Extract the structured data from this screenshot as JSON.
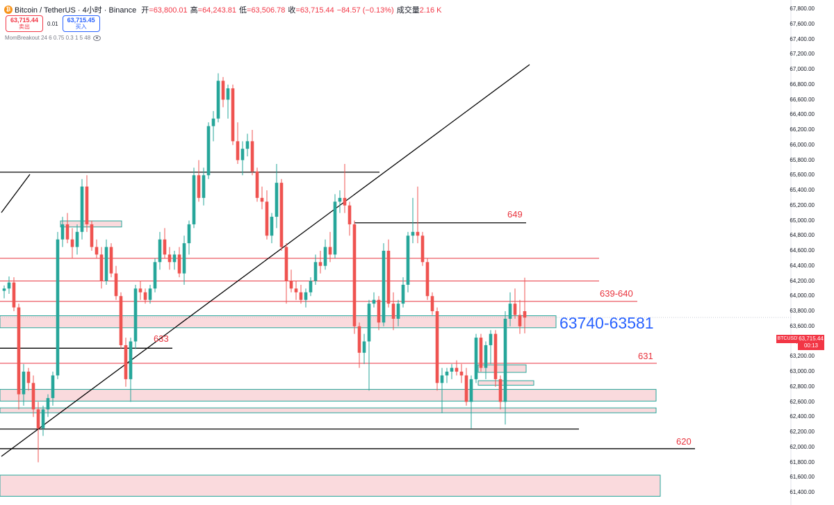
{
  "header": {
    "title": "Bitcoin / TetherUS · 4小时 · Binance",
    "coin_glyph": "₿",
    "ohlc": [
      {
        "k": "开",
        "v": "=63,800.01"
      },
      {
        "k": "高",
        "v": "=64,243.81"
      },
      {
        "k": "低",
        "v": "=63,506.78"
      },
      {
        "k": "收",
        "v": "=63,715.44"
      },
      {
        "k": "",
        "v": "−84.57 (−0.13%)"
      },
      {
        "k": "成交量",
        "v": "2.16 K"
      }
    ]
  },
  "trade": {
    "sell_price": "63,715.44",
    "sell_label": "卖出",
    "spread": "0.01",
    "buy_price": "63,715.45",
    "buy_label": "买入"
  },
  "indicator": {
    "label": "MomBreakout 24 6 0.75 0.3 1 5 48"
  },
  "price_axis": {
    "symbol": "BTCUSDT",
    "last_price": "63,715.44",
    "countdown": "00:13"
  },
  "annotations": {
    "a649": "649",
    "a639": "639-640",
    "a63740": "63740-63581",
    "a633": "633",
    "a631": "631",
    "a620": "620"
  },
  "colors": {
    "up": "#26a69a",
    "down": "#ef5350",
    "zone_fill": "#fadadd",
    "zone_border": "#26a69a",
    "red_line": "#e8323c",
    "black_line": "#000000",
    "blue_text": "#2962ff"
  },
  "chart_data": {
    "type": "candlestick",
    "title": "Bitcoin / TetherUS · 4小时 · Binance",
    "ylim": [
      61400,
      67800
    ],
    "y_ticks": [
      61400,
      61600,
      61800,
      62000,
      62200,
      62400,
      62600,
      62800,
      63000,
      63200,
      63400,
      63600,
      63800,
      64000,
      64200,
      64400,
      64600,
      64800,
      65000,
      65200,
      65400,
      65600,
      65800,
      66000,
      66200,
      66400,
      66600,
      66800,
      67000,
      67200,
      67400,
      67600,
      67800
    ],
    "candles": [
      [
        64070,
        64140,
        63970,
        64100
      ],
      [
        64100,
        64260,
        64030,
        64180
      ],
      [
        64180,
        64250,
        63800,
        63850
      ],
      [
        63850,
        63900,
        62500,
        62700
      ],
      [
        62700,
        63100,
        62550,
        63000
      ],
      [
        63000,
        63050,
        62750,
        62850
      ],
      [
        62850,
        62950,
        62400,
        62500
      ],
      [
        62500,
        62600,
        61800,
        62250
      ],
      [
        62250,
        62550,
        62150,
        62500
      ],
      [
        62500,
        62700,
        62400,
        62650
      ],
      [
        62650,
        63000,
        62550,
        62950
      ],
      [
        62950,
        64850,
        62900,
        64750
      ],
      [
        64750,
        65050,
        64650,
        64950
      ],
      [
        64950,
        65100,
        64700,
        64750
      ],
      [
        64750,
        64900,
        64500,
        64650
      ],
      [
        64650,
        64950,
        64550,
        64850
      ],
      [
        64850,
        65550,
        64750,
        65450
      ],
      [
        65450,
        65600,
        64850,
        64950
      ],
      [
        64950,
        65000,
        64600,
        64650
      ],
      [
        64650,
        64750,
        64500,
        64550
      ],
      [
        64550,
        64650,
        64100,
        64200
      ],
      [
        64200,
        64750,
        64150,
        64650
      ],
      [
        64650,
        64700,
        64250,
        64300
      ],
      [
        64300,
        64400,
        63950,
        64000
      ],
      [
        64000,
        64050,
        63300,
        63350
      ],
      [
        63350,
        63450,
        62800,
        62900
      ],
      [
        62900,
        63450,
        62600,
        63400
      ],
      [
        63400,
        64150,
        63300,
        64100
      ],
      [
        64100,
        64200,
        63950,
        64050
      ],
      [
        64050,
        64100,
        63900,
        63950
      ],
      [
        63950,
        64150,
        63900,
        64100
      ],
      [
        64100,
        64500,
        64050,
        64450
      ],
      [
        64450,
        64850,
        64350,
        64750
      ],
      [
        64750,
        64900,
        64500,
        64550
      ],
      [
        64550,
        64650,
        64350,
        64450
      ],
      [
        64450,
        64600,
        64350,
        64550
      ],
      [
        64550,
        64650,
        64250,
        64300
      ],
      [
        64300,
        64800,
        64150,
        64700
      ],
      [
        64700,
        65000,
        64550,
        64950
      ],
      [
        64950,
        65700,
        64900,
        65600
      ],
      [
        65600,
        65800,
        65250,
        65300
      ],
      [
        65300,
        65700,
        65200,
        65600
      ],
      [
        65600,
        66300,
        65550,
        66250
      ],
      [
        66250,
        66450,
        66050,
        66350
      ],
      [
        66350,
        66950,
        66300,
        66850
      ],
      [
        66850,
        66900,
        66500,
        66600
      ],
      [
        66600,
        66800,
        66350,
        66750
      ],
      [
        66750,
        66800,
        66000,
        66050
      ],
      [
        66050,
        66300,
        65750,
        65800
      ],
      [
        65800,
        66050,
        65600,
        65950
      ],
      [
        65950,
        66150,
        65850,
        66050
      ],
      [
        66050,
        66200,
        65600,
        65650
      ],
      [
        65650,
        65700,
        65250,
        65300
      ],
      [
        65300,
        65450,
        65150,
        65250
      ],
      [
        65250,
        65400,
        64750,
        64800
      ],
      [
        64800,
        65100,
        64700,
        65050
      ],
      [
        65050,
        65750,
        64900,
        65500
      ],
      [
        65500,
        65550,
        64600,
        64650
      ],
      [
        64650,
        64700,
        63900,
        64200
      ],
      [
        64200,
        64350,
        64050,
        64100
      ],
      [
        64100,
        64200,
        63950,
        64050
      ],
      [
        64050,
        64150,
        63900,
        63950
      ],
      [
        63950,
        64100,
        63850,
        64050
      ],
      [
        64050,
        64250,
        64000,
        64200
      ],
      [
        64200,
        64550,
        64150,
        64450
      ],
      [
        64450,
        64600,
        64300,
        64400
      ],
      [
        64400,
        64750,
        64350,
        64650
      ],
      [
        64650,
        64850,
        64450,
        64550
      ],
      [
        64550,
        65350,
        64500,
        65250
      ],
      [
        65250,
        65400,
        65100,
        65300
      ],
      [
        65300,
        65750,
        65100,
        65200
      ],
      [
        65200,
        65250,
        64800,
        64950
      ],
      [
        64950,
        65000,
        63500,
        63600
      ],
      [
        63600,
        63650,
        63050,
        63250
      ],
      [
        63250,
        63500,
        63100,
        63400
      ],
      [
        63400,
        63950,
        62750,
        63900
      ],
      [
        63900,
        64050,
        63850,
        63950
      ],
      [
        63950,
        64000,
        63550,
        63650
      ],
      [
        63650,
        64700,
        63600,
        64600
      ],
      [
        64600,
        64750,
        63850,
        63900
      ],
      [
        63900,
        64050,
        63550,
        63700
      ],
      [
        63700,
        63950,
        63600,
        63900
      ],
      [
        63900,
        64250,
        63850,
        64150
      ],
      [
        64150,
        64850,
        64050,
        64800
      ],
      [
        64800,
        65300,
        64700,
        64850
      ],
      [
        64850,
        65450,
        64700,
        64800
      ],
      [
        64800,
        64850,
        64400,
        64450
      ],
      [
        64450,
        64500,
        63950,
        64000
      ],
      [
        64000,
        64050,
        63750,
        63800
      ],
      [
        63800,
        63850,
        62750,
        62850
      ],
      [
        62850,
        63050,
        62450,
        62950
      ],
      [
        62950,
        63050,
        62850,
        63000
      ],
      [
        63000,
        63100,
        62900,
        63050
      ],
      [
        63050,
        63150,
        62950,
        63000
      ],
      [
        63000,
        63100,
        62850,
        62950
      ],
      [
        62950,
        63050,
        62550,
        62600
      ],
      [
        62600,
        62950,
        62250,
        62900
      ],
      [
        62900,
        63500,
        62850,
        63450
      ],
      [
        63450,
        63500,
        63000,
        63050
      ],
      [
        63050,
        63400,
        62900,
        63350
      ],
      [
        63350,
        63550,
        63100,
        63500
      ],
      [
        63500,
        63550,
        62800,
        62900
      ],
      [
        62900,
        62950,
        62500,
        62600
      ],
      [
        62600,
        63800,
        62300,
        63700
      ],
      [
        63700,
        64050,
        63600,
        63900
      ],
      [
        63900,
        64100,
        63700,
        63750
      ],
      [
        63750,
        63950,
        63500,
        63600
      ],
      [
        63800.01,
        64243.81,
        63506.78,
        63715.44
      ]
    ],
    "levels": [
      {
        "price": 64970,
        "label": "649",
        "color": "black"
      },
      {
        "price": 64500,
        "label": "",
        "color": "red"
      },
      {
        "price": 64200,
        "label": "",
        "color": "red"
      },
      {
        "price": 63930,
        "label": "639-640",
        "color": "red"
      },
      {
        "price": 63310,
        "label": "633",
        "color": "black"
      },
      {
        "price": 63110,
        "label": "631",
        "color": "red"
      },
      {
        "price": 62240,
        "label": "",
        "color": "black"
      },
      {
        "price": 61980,
        "label": "620",
        "color": "black"
      },
      {
        "price": 65640,
        "label": "",
        "color": "black"
      }
    ],
    "zones": [
      {
        "top": 63740,
        "bottom": 63581,
        "label": "63740-63581"
      },
      {
        "top": 64995,
        "bottom": 64915,
        "label": ""
      },
      {
        "top": 63090,
        "bottom": 62990,
        "label": ""
      },
      {
        "top": 62880,
        "bottom": 62820,
        "label": ""
      },
      {
        "top": 62765,
        "bottom": 62610,
        "label": ""
      },
      {
        "top": 62520,
        "bottom": 62455,
        "label": ""
      },
      {
        "top": 61630,
        "bottom": 61350,
        "label": ""
      }
    ]
  }
}
